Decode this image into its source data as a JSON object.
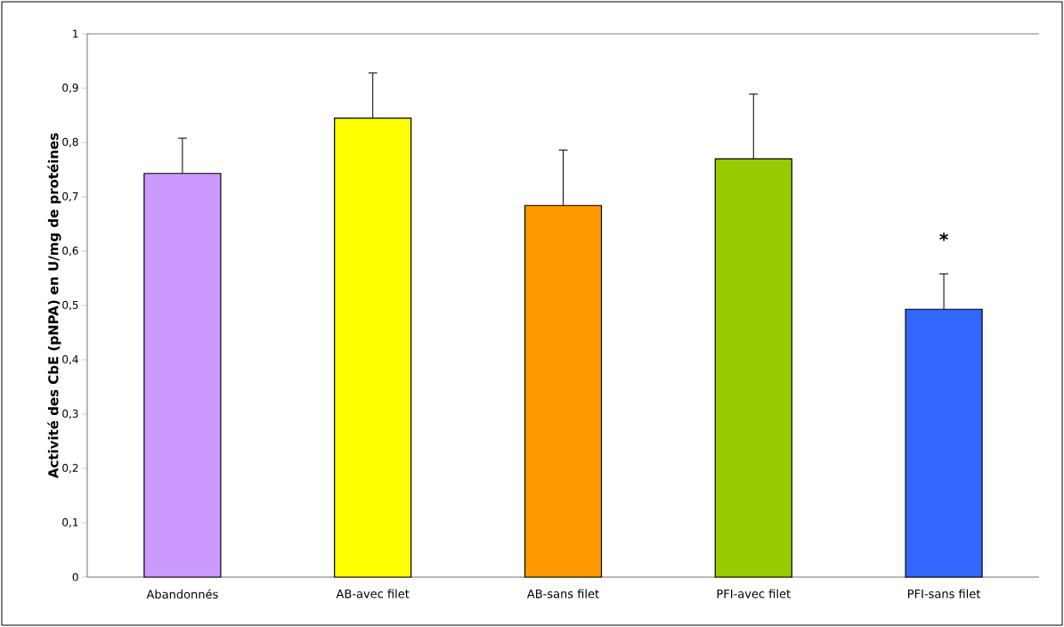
{
  "chart_data": {
    "type": "bar",
    "ylabel": "Activité des CbE (pNPA) en U/mg de protéines",
    "categories": [
      "Abandonnés",
      "AB-avec filet",
      "AB-sans filet",
      "PFI-avec filet",
      "PFI-sans filet"
    ],
    "values": [
      0.743,
      0.845,
      0.684,
      0.77,
      0.493
    ],
    "errors": [
      0.065,
      0.083,
      0.102,
      0.119,
      0.065
    ],
    "colors": [
      "#cc99ff",
      "#ffff00",
      "#ff9900",
      "#99cc00",
      "#3366ff"
    ],
    "ylim": [
      0,
      1
    ],
    "yticks": [
      0,
      {
        "value": 0.1,
        "label": "0,1"
      },
      {
        "value": 0.2,
        "label": "0,2"
      },
      {
        "value": 0.3,
        "label": "0,3"
      },
      {
        "value": 0.4,
        "label": "0,4"
      },
      {
        "value": 0.5,
        "label": "0,5"
      },
      {
        "value": 0.6,
        "label": "0,6"
      },
      {
        "value": 0.7,
        "label": "0,7"
      },
      {
        "value": 0.8,
        "label": "0,8"
      },
      {
        "value": 0.9,
        "label": "0,9"
      },
      1
    ],
    "annotations": [
      "*"
    ],
    "grid": false
  }
}
